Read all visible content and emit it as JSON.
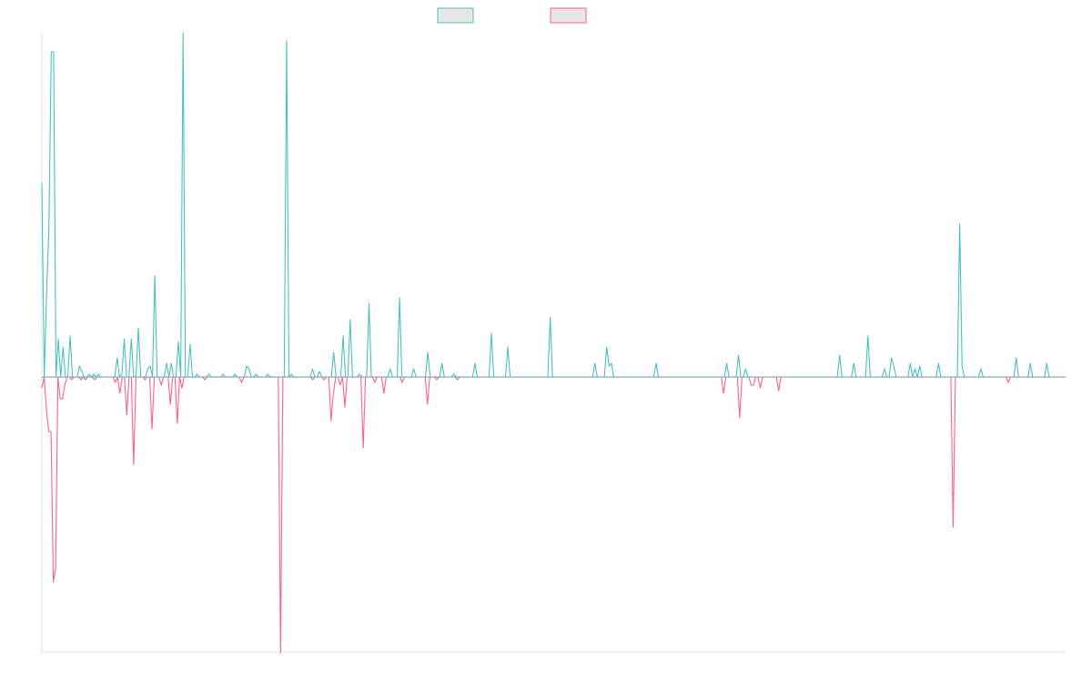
{
  "chart_data": {
    "type": "line",
    "title": "",
    "xlabel": "",
    "ylabel": "",
    "grid": false,
    "legend_placement": "top-center",
    "baseline": 0,
    "series": [
      {
        "color": "#4bc0c0",
        "fill": "#e6e6e6",
        "values": [
          71,
          0,
          30,
          55,
          119,
          119,
          0,
          14,
          0,
          11,
          0,
          0,
          15,
          0,
          0,
          0,
          4,
          2,
          0,
          0,
          1,
          0,
          1,
          0,
          1,
          0,
          0,
          0,
          0,
          0,
          0,
          0,
          7,
          0,
          1,
          14,
          0,
          0,
          14,
          0,
          0,
          18,
          0,
          0,
          0,
          3,
          4,
          0,
          37,
          0,
          0,
          0,
          0,
          5,
          0,
          5,
          0,
          0,
          13,
          0,
          126,
          0,
          0,
          12,
          0,
          0,
          1,
          0,
          0,
          0,
          0,
          1,
          0,
          0,
          0,
          0,
          0,
          1,
          0,
          0,
          0,
          0,
          1,
          0,
          0,
          0,
          0,
          4,
          3,
          0,
          0,
          1,
          0,
          0,
          0,
          0,
          1,
          0,
          0,
          0,
          0,
          0,
          0,
          0,
          123,
          0,
          1,
          0,
          0,
          0,
          0,
          0,
          0,
          0,
          0,
          3,
          0,
          0,
          2,
          0,
          0,
          0,
          0,
          0,
          9,
          0,
          0,
          0,
          15,
          0,
          0,
          21,
          0,
          0,
          0,
          1,
          0,
          0,
          0,
          27,
          0,
          0,
          0,
          0,
          0,
          0,
          0,
          0,
          3,
          0,
          0,
          0,
          29,
          0,
          0,
          0,
          0,
          0,
          3,
          0,
          0,
          0,
          0,
          0,
          9,
          0,
          0,
          0,
          0,
          0,
          5,
          0,
          0,
          0,
          0,
          1,
          0,
          0,
          0,
          0,
          0,
          0,
          0,
          0,
          5,
          0,
          0,
          0,
          0,
          0,
          0,
          16,
          0,
          0,
          0,
          0,
          0,
          0,
          11,
          0,
          0,
          0,
          0,
          0,
          0,
          0,
          0,
          0,
          0,
          0,
          0,
          0,
          0,
          0,
          0,
          0,
          22,
          0,
          0,
          0,
          0,
          0,
          0,
          0,
          0,
          0,
          0,
          0,
          0,
          0,
          0,
          0,
          0,
          0,
          0,
          5,
          0,
          0,
          0,
          0,
          11,
          4,
          5,
          0,
          0,
          0,
          0,
          0,
          0,
          0,
          0,
          0,
          0,
          0,
          0,
          0,
          0,
          0,
          0,
          0,
          0,
          5,
          0,
          0,
          0,
          0,
          0,
          0,
          0,
          0,
          0,
          0,
          0,
          0,
          0,
          0,
          0,
          0,
          0,
          0,
          0,
          0,
          0,
          0,
          0,
          0,
          0,
          0,
          0,
          0,
          0,
          5,
          0,
          0,
          0,
          0,
          8,
          0,
          0,
          3,
          0,
          0,
          0,
          0,
          0,
          0,
          0,
          0,
          0,
          0,
          0,
          0,
          0,
          0,
          0,
          0,
          0,
          0,
          0,
          0,
          0,
          0,
          0,
          0,
          0,
          0,
          0,
          0,
          0,
          0,
          0,
          0,
          0,
          0,
          0,
          0,
          0,
          0,
          0,
          8,
          0,
          0,
          0,
          0,
          0,
          5,
          0,
          0,
          0,
          0,
          0,
          15,
          0,
          0,
          0,
          0,
          0,
          0,
          3,
          0,
          0,
          7,
          4,
          0,
          0,
          0,
          0,
          0,
          0,
          5,
          0,
          3,
          0,
          4,
          0,
          0,
          0,
          0,
          0,
          0,
          0,
          5,
          0,
          0,
          0,
          0,
          0,
          0,
          0,
          0,
          56,
          4,
          0,
          0,
          0,
          0,
          0,
          0,
          0,
          3,
          0,
          0,
          0,
          0,
          0,
          0,
          0,
          0,
          0,
          0,
          0,
          0,
          0,
          0,
          7,
          0,
          0,
          0,
          0,
          0,
          5,
          0,
          0,
          0,
          0,
          0,
          0,
          5,
          0,
          0,
          0,
          0,
          0,
          0,
          0,
          0
        ]
      },
      {
        "color": "#ff6384",
        "fill": "#e6e6e6",
        "values": [
          -4,
          0,
          -12,
          -20,
          -20,
          -75,
          -70,
          0,
          -8,
          -8,
          -3,
          0,
          0,
          -1,
          0,
          0,
          0,
          -1,
          0,
          -1,
          0,
          0,
          0,
          -1,
          0,
          0,
          0,
          0,
          0,
          0,
          0,
          0,
          -2,
          0,
          -6,
          0,
          0,
          -14,
          0,
          0,
          -32,
          0,
          0,
          0,
          0,
          -1,
          0,
          0,
          -19,
          0,
          0,
          0,
          -3,
          0,
          0,
          0,
          -10,
          0,
          0,
          -17,
          0,
          -4,
          0,
          0,
          0,
          0,
          0,
          0,
          0,
          0,
          0,
          -1,
          0,
          0,
          0,
          0,
          0,
          0,
          0,
          0,
          0,
          0,
          0,
          0,
          0,
          0,
          0,
          -2,
          0,
          0,
          0,
          0,
          0,
          0,
          0,
          0,
          0,
          0,
          0,
          0,
          0,
          0,
          0,
          0,
          -101,
          0,
          0,
          0,
          0,
          0,
          0,
          0,
          0,
          0,
          0,
          0,
          0,
          0,
          -1,
          0,
          0,
          0,
          0,
          -1,
          0,
          0,
          -16,
          -6,
          0,
          0,
          -3,
          0,
          -11,
          0,
          0,
          0,
          0,
          0,
          0,
          0,
          -26,
          0,
          0,
          0,
          0,
          -2,
          0,
          0,
          0,
          -6,
          0,
          0,
          0,
          0,
          0,
          0,
          0,
          -2,
          0,
          0,
          0,
          0,
          0,
          0,
          0,
          0,
          0,
          0,
          -10,
          0,
          0,
          0,
          -1,
          0,
          0,
          0,
          0,
          0,
          0,
          0,
          0,
          -1,
          0,
          0,
          0,
          0,
          0,
          0,
          0,
          0,
          0,
          0,
          0,
          0,
          0,
          0,
          0,
          0,
          0,
          0,
          0,
          0,
          0,
          0,
          0,
          0,
          0,
          0,
          0,
          0,
          0,
          0,
          0,
          0,
          0,
          0,
          0,
          0,
          0,
          0,
          0,
          0,
          0,
          0,
          0,
          0,
          0,
          0,
          0,
          0,
          0,
          0,
          0,
          0,
          0,
          0,
          0,
          0,
          0,
          0,
          0,
          0,
          0,
          0,
          0,
          0,
          0,
          0,
          0,
          0,
          0,
          0,
          0,
          0,
          0,
          0,
          0,
          0,
          0,
          0,
          0,
          0,
          0,
          0,
          0,
          0,
          0,
          0,
          0,
          0,
          0,
          0,
          0,
          0,
          0,
          0,
          0,
          0,
          0,
          0,
          0,
          0,
          0,
          0,
          0,
          0,
          0,
          0,
          0,
          0,
          0,
          0,
          0,
          0,
          0,
          0,
          0,
          -6,
          0,
          0,
          0,
          0,
          0,
          0,
          -15,
          0,
          0,
          0,
          0,
          -3,
          -3,
          0,
          0,
          -4,
          0,
          0,
          0,
          0,
          0,
          0,
          0,
          -5,
          0,
          0,
          0,
          0,
          0,
          0,
          0,
          0,
          0,
          0,
          0,
          0,
          0,
          0,
          0,
          0,
          0,
          0,
          0,
          0,
          0,
          0,
          0,
          0,
          0,
          0,
          0,
          0,
          0,
          0,
          0,
          0,
          0,
          0,
          0,
          0,
          0,
          0,
          0,
          0,
          0,
          0,
          0,
          0,
          0,
          0,
          0,
          0,
          0,
          0,
          0,
          0,
          0,
          0,
          0,
          0,
          0,
          0,
          0,
          0,
          0,
          0,
          0,
          0,
          0,
          0,
          0,
          0,
          0,
          0,
          0,
          0,
          0,
          0,
          0,
          -55,
          0,
          0,
          0,
          0,
          0,
          0,
          0,
          0,
          0,
          0,
          0,
          0,
          0,
          0,
          0,
          0,
          0,
          0,
          0,
          0,
          0,
          0,
          0,
          -2,
          0,
          0,
          0,
          0,
          0,
          0,
          0,
          0,
          0,
          0,
          0,
          0,
          0,
          0,
          0,
          0,
          0,
          0,
          0,
          0,
          0,
          0,
          0,
          0,
          0
        ]
      }
    ]
  }
}
